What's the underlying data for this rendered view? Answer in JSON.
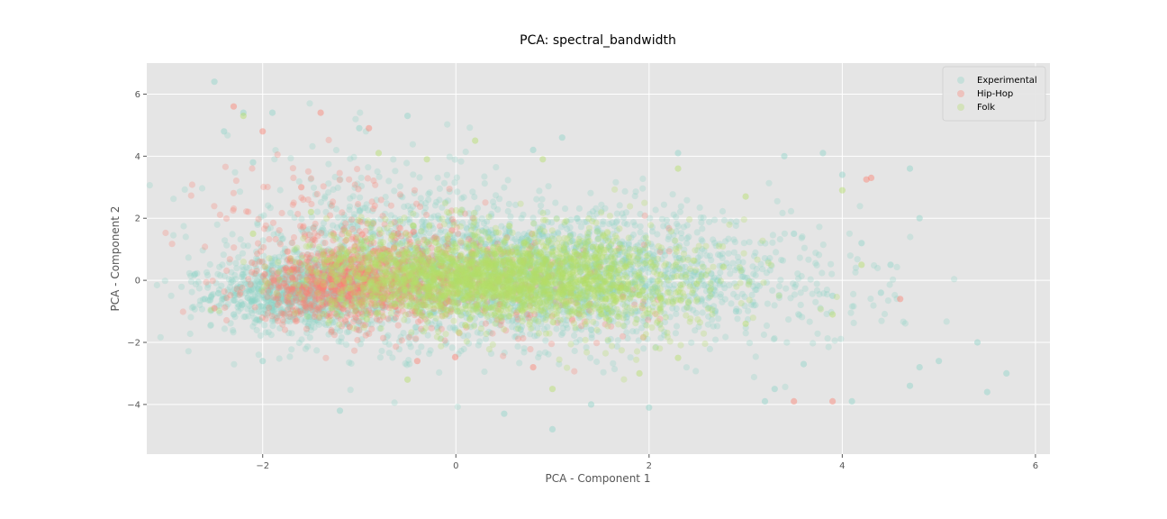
{
  "chart_data": {
    "type": "scatter",
    "title": "PCA: spectral_bandwidth",
    "xlabel": "PCA - Component 1",
    "ylabel": "PCA - Component 2",
    "xlim": [
      -3.2,
      6.15
    ],
    "ylim": [
      -5.6,
      7.0
    ],
    "xticks": [
      -2,
      0,
      2,
      4,
      6
    ],
    "yticks": [
      -4,
      -2,
      0,
      2,
      4,
      6
    ],
    "xtick_labels": [
      "−2",
      "0",
      "2",
      "4",
      "6"
    ],
    "ytick_labels": [
      "−4",
      "−2",
      "0",
      "2",
      "4",
      "6"
    ],
    "grid": true,
    "legend_position": "top-right",
    "series": [
      {
        "name": "Experimental",
        "color": "#8dd3c7",
        "description": "broad cloud, densest around (-1.5, -0.5) to (1.5, 0); spread x -2.7..5.7, y -5..6.4",
        "points": [
          [
            -2.5,
            6.4
          ],
          [
            -2.2,
            5.4
          ],
          [
            -1.9,
            5.4
          ],
          [
            -1.0,
            4.9
          ],
          [
            -0.5,
            5.3
          ],
          [
            0.8,
            4.2
          ],
          [
            1.1,
            4.6
          ],
          [
            2.3,
            4.1
          ],
          [
            3.4,
            4.0
          ],
          [
            3.8,
            4.1
          ],
          [
            4.0,
            3.4
          ],
          [
            4.7,
            3.6
          ],
          [
            4.8,
            2.0
          ],
          [
            4.2,
            1.2
          ],
          [
            5.0,
            -2.6
          ],
          [
            5.4,
            -2.0
          ],
          [
            5.5,
            -3.6
          ],
          [
            5.7,
            -3.0
          ],
          [
            4.7,
            -3.4
          ],
          [
            4.8,
            -2.8
          ],
          [
            4.1,
            -3.9
          ],
          [
            3.6,
            -2.7
          ],
          [
            3.3,
            -3.5
          ],
          [
            3.2,
            -3.9
          ],
          [
            2.0,
            -4.1
          ],
          [
            1.4,
            -4.0
          ],
          [
            1.0,
            -4.8
          ],
          [
            0.5,
            -4.3
          ],
          [
            -1.2,
            -4.2
          ],
          [
            -2.7,
            0.2
          ],
          [
            -2.6,
            -0.6
          ],
          [
            -2.3,
            -1.1
          ],
          [
            -2.0,
            -2.6
          ],
          [
            -2.1,
            3.8
          ],
          [
            -2.4,
            4.8
          ],
          [
            2.9,
            -1.0
          ],
          [
            3.5,
            1.5
          ],
          [
            3.9,
            -0.5
          ],
          [
            4.4,
            -0.4
          ],
          [
            4.5,
            0.5
          ]
        ]
      },
      {
        "name": "Hip-Hop",
        "color": "#fb8072",
        "description": "concentrated around x -1.8..0.3, y -1.2..1.2, peak near (-1.2, -0.3)",
        "points": [
          [
            -2.3,
            5.6
          ],
          [
            -1.4,
            5.4
          ],
          [
            -0.9,
            4.9
          ],
          [
            -2.0,
            4.8
          ],
          [
            4.25,
            3.25
          ],
          [
            4.3,
            3.3
          ],
          [
            4.6,
            -0.6
          ],
          [
            3.9,
            -3.9
          ],
          [
            3.5,
            -3.9
          ],
          [
            0.8,
            -2.8
          ],
          [
            -0.4,
            -2.6
          ],
          [
            -2.5,
            -0.9
          ],
          [
            -1.6,
            3.0
          ],
          [
            -1.1,
            -1.5
          ],
          [
            -0.6,
            1.5
          ]
        ]
      },
      {
        "name": "Folk",
        "color": "#b3de69",
        "description": "dense core around x -0.8..2.0, y -1.2..1.2, peak near (0.4, 0)",
        "points": [
          [
            -2.2,
            5.3
          ],
          [
            -0.8,
            4.1
          ],
          [
            -0.3,
            3.9
          ],
          [
            0.2,
            4.5
          ],
          [
            0.9,
            3.9
          ],
          [
            2.3,
            3.6
          ],
          [
            3.0,
            2.7
          ],
          [
            4.0,
            2.9
          ],
          [
            4.2,
            0.5
          ],
          [
            3.9,
            -1.1
          ],
          [
            3.0,
            -1.4
          ],
          [
            2.3,
            -2.5
          ],
          [
            1.9,
            -3.0
          ],
          [
            1.0,
            -3.5
          ],
          [
            -0.5,
            -3.2
          ],
          [
            -2.1,
            1.5
          ],
          [
            -1.5,
            2.2
          ]
        ]
      }
    ]
  }
}
